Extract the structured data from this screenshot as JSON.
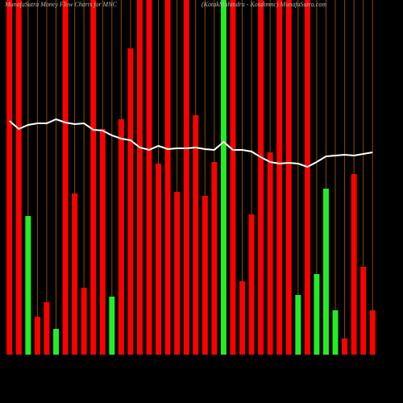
{
  "chart_data": {
    "type": "bar",
    "title": "MunafaSutra  Money Flow  Charts for MNC",
    "subtitle": "(KotakMahindra  -  Kotakmnc) MunafaSutra.com",
    "values": [
      440,
      440,
      172,
      47,
      65,
      32,
      440,
      200,
      83,
      440,
      280,
      72,
      292,
      380,
      440,
      440,
      237,
      440,
      202,
      440,
      297,
      197,
      239,
      440,
      440,
      91,
      174,
      440,
      251,
      440,
      440,
      74,
      440,
      100,
      206,
      55,
      20,
      224,
      109,
      55
    ],
    "colors": [
      "#ff0000",
      "#ff0000",
      "#22ee22",
      "#ff0000",
      "#ff0000",
      "#22ee22",
      "#ff0000",
      "#ff0000",
      "#ff0000",
      "#ff0000",
      "#ff0000",
      "#22ee22",
      "#ff0000",
      "#ff0000",
      "#ff0000",
      "#ff0000",
      "#ff0000",
      "#ff0000",
      "#ff0000",
      "#ff0000",
      "#ff0000",
      "#ff0000",
      "#ff0000",
      "#22ee22",
      "#ff0000",
      "#ff0000",
      "#ff0000",
      "#ff0000",
      "#ff0000",
      "#ff0000",
      "#ff0000",
      "#22ee22",
      "#ff0000",
      "#22ee22",
      "#22ee22",
      "#22ee22",
      "#ff0000",
      "#ff0000",
      "#ff0000",
      "#ff0000"
    ],
    "line": [
      290,
      280,
      285,
      287,
      287,
      292,
      288,
      286,
      287,
      279,
      278,
      272,
      268,
      266,
      257,
      254,
      259,
      255,
      256,
      256,
      257,
      255,
      254,
      264,
      254,
      254,
      252,
      245,
      239,
      237,
      238,
      237,
      233,
      239,
      246,
      247,
      248,
      247,
      249,
      251
    ],
    "line_color": "#ffffff",
    "grid_color": "#8a4a00",
    "ylim": [
      0,
      440
    ],
    "grid": true
  }
}
